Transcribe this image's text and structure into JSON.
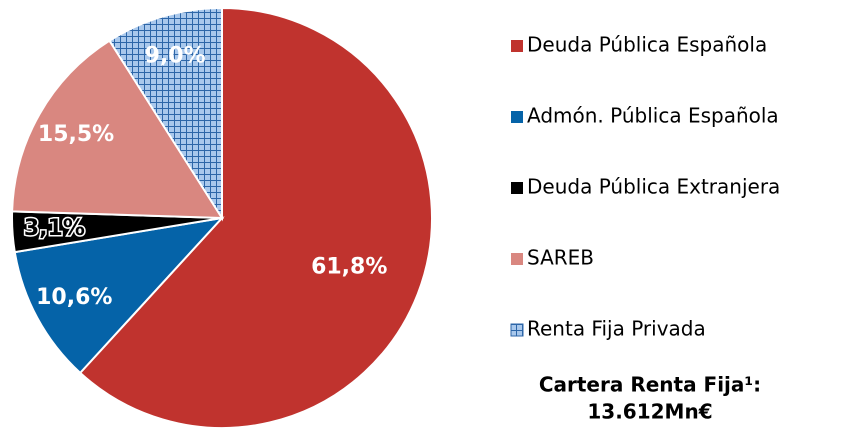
{
  "chart_data": {
    "type": "pie",
    "categories": [
      "Deuda Pública Española",
      "Admón. Pública Española",
      "Deuda Pública Extranjera",
      "SAREB",
      "Renta Fija Privada"
    ],
    "values": [
      61.8,
      10.6,
      3.1,
      15.5,
      9.0
    ],
    "value_labels": [
      "61,8%",
      "10,6%",
      "3,1%",
      "15,5%",
      "9,0%"
    ],
    "colors": [
      "#c0332e",
      "#0563a8",
      "#000000",
      "#d98780",
      "#a9c8ec"
    ],
    "hatched": [
      false,
      false,
      false,
      false,
      true
    ],
    "annotations": [
      "Cartera Renta Fija¹:",
      "13.612Mn€"
    ]
  }
}
